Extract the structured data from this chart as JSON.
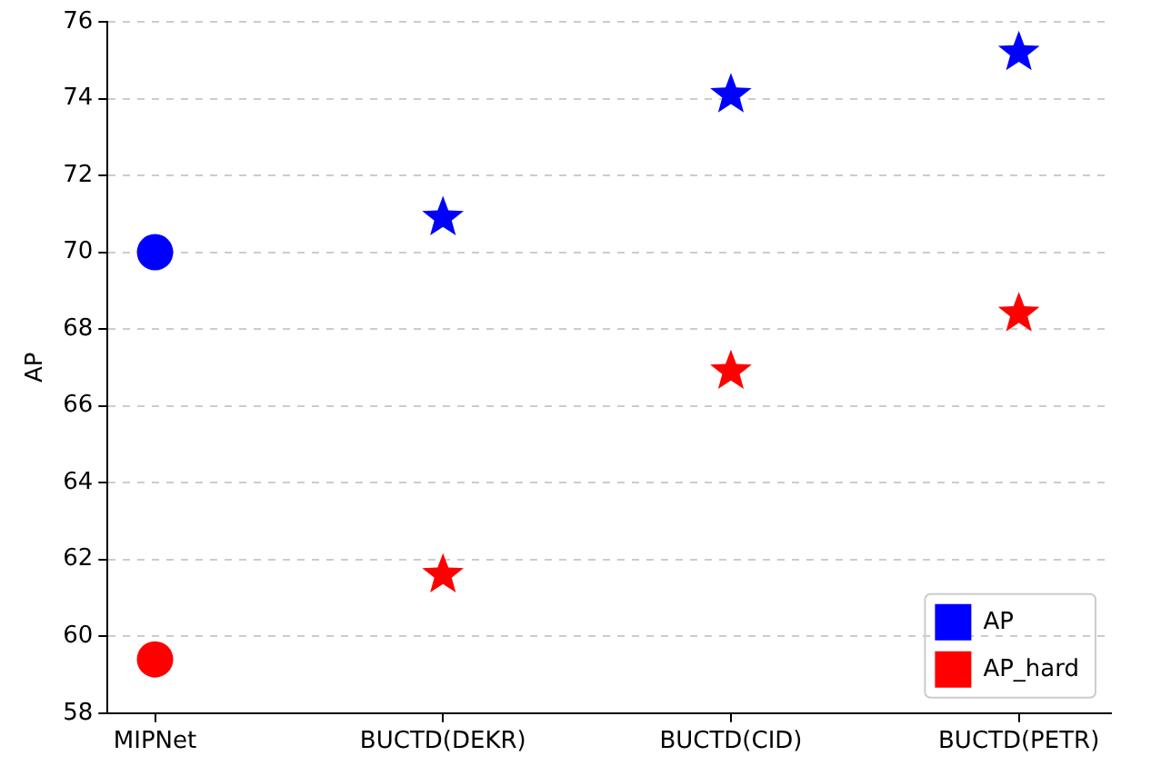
{
  "chart_data": {
    "type": "scatter",
    "ylabel": "AP",
    "categories": [
      "MIPNet",
      "BUCTD(DEKR)",
      "BUCTD(CID)",
      "BUCTD(PETR)"
    ],
    "series": [
      {
        "name": "AP",
        "color": "#0000ff",
        "x": [
          "MIPNet"
        ],
        "values": [
          70.0
        ],
        "marker": "circle"
      },
      {
        "name": "AP_hard",
        "color": "#ff0000",
        "x": [
          "MIPNet"
        ],
        "values": [
          59.4
        ],
        "marker": "circle"
      },
      {
        "color": "#0000ff",
        "x": [
          "BUCTD(DEKR)",
          "BUCTD(CID)",
          "BUCTD(PETR)"
        ],
        "values": [
          70.9,
          74.1,
          75.2
        ],
        "marker": "star"
      },
      {
        "color": "#ff0000",
        "x": [
          "BUCTD(DEKR)",
          "BUCTD(CID)",
          "BUCTD(PETR)"
        ],
        "values": [
          61.6,
          66.9,
          68.4
        ],
        "marker": "star"
      }
    ],
    "ylim": [
      58,
      76
    ],
    "yticks": [
      58,
      60,
      62,
      64,
      66,
      68,
      70,
      72,
      74,
      76
    ],
    "grid": "y",
    "legend": "bottom right"
  }
}
